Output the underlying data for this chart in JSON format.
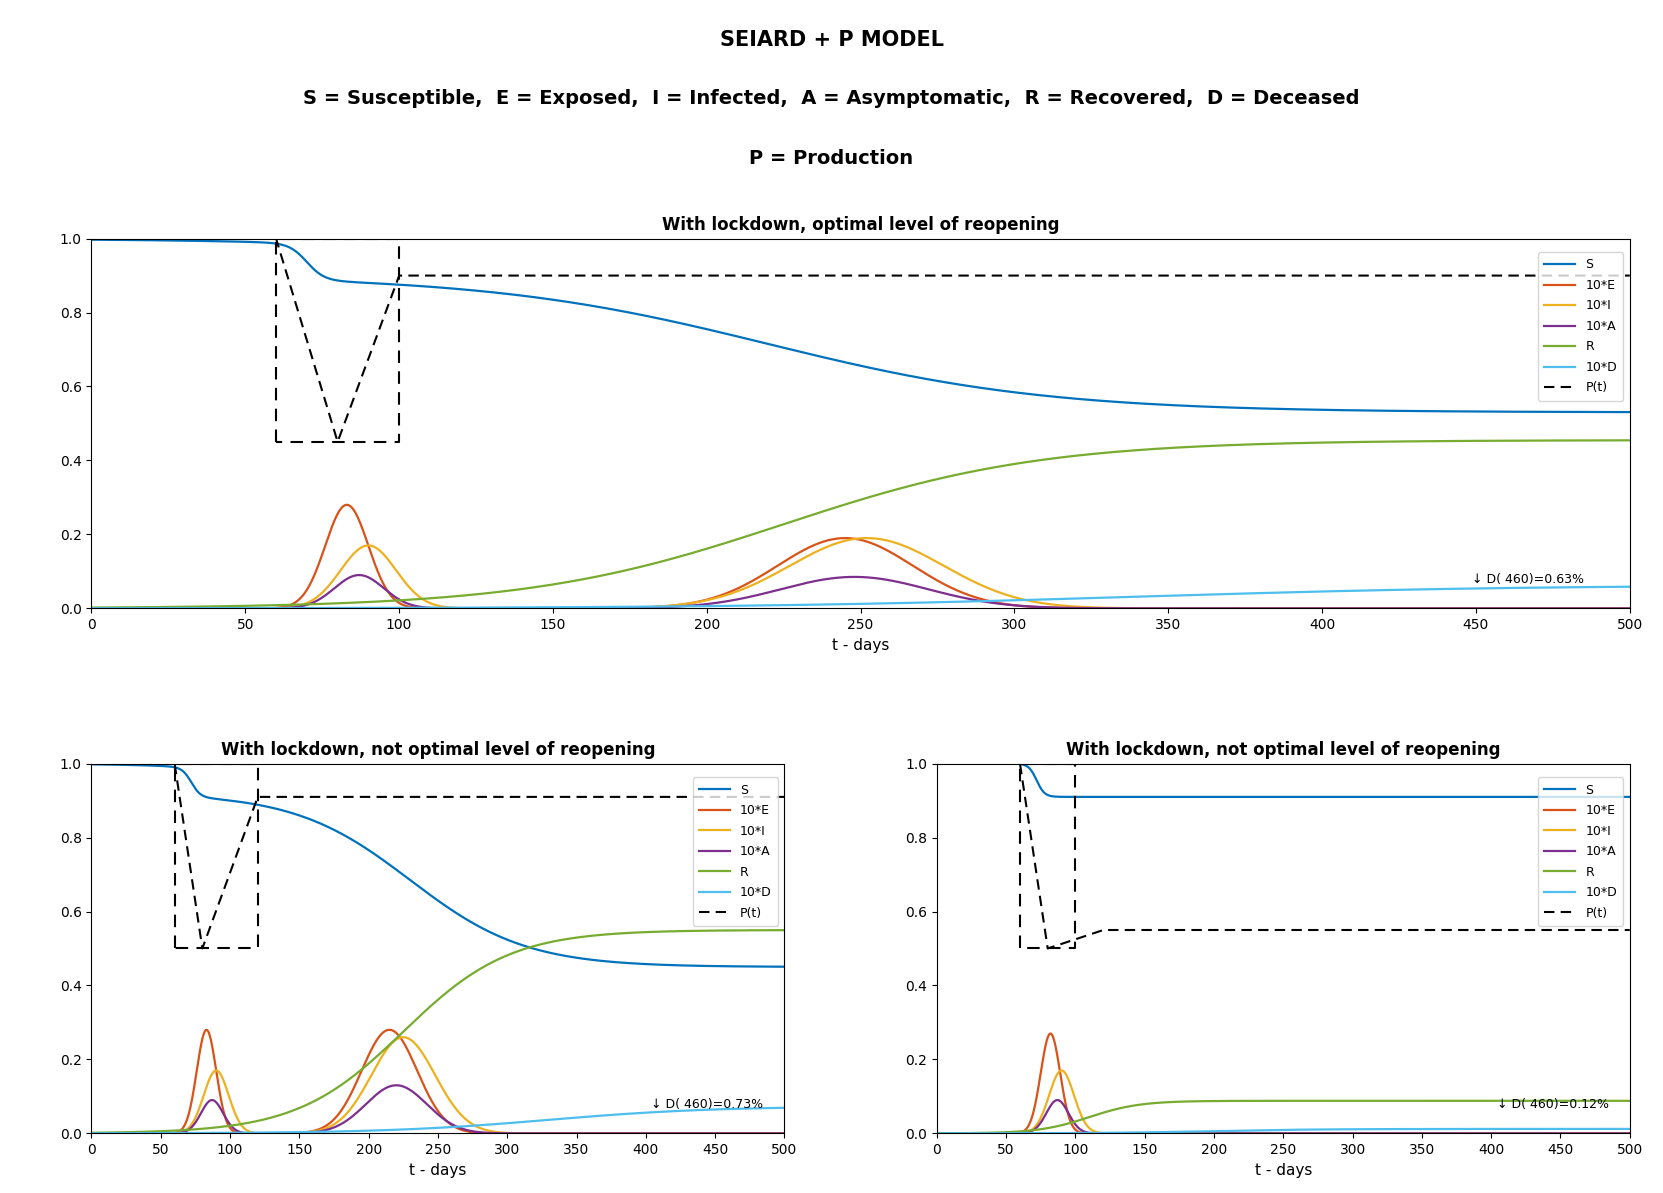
{
  "title_main": "SEIARD + P MODEL",
  "subtitle1": "S = Susceptible,  E = Exposed,  I = Infected,  A = Asymptomatic,  R = Recovered,  D = Deceased",
  "subtitle2": "P = Production",
  "plot1_title": "With lockdown, optimal level of reopening",
  "plot2_title": "With lockdown, not optimal level of reopening",
  "plot3_title": "With lockdown, not optimal level of reopening",
  "xlabel": "t - days",
  "colors": {
    "S": "#0072BD",
    "E": "#D95319",
    "I": "#EDB120",
    "A": "#7E2F8E",
    "R": "#77AC30",
    "D": "#4DBEEE",
    "P": "#000000"
  },
  "annotation1": "↓ D( 460)=0.63%",
  "annotation2": "↓ D( 460)=0.73%",
  "annotation3": "↓ D( 460)=0.12%",
  "xlim": [
    0,
    500
  ],
  "ylim": [
    0,
    1
  ],
  "xticks": [
    0,
    50,
    100,
    150,
    200,
    250,
    300,
    350,
    400,
    450,
    500
  ],
  "yticks": [
    0,
    0.2,
    0.4,
    0.6,
    0.8,
    1.0
  ]
}
